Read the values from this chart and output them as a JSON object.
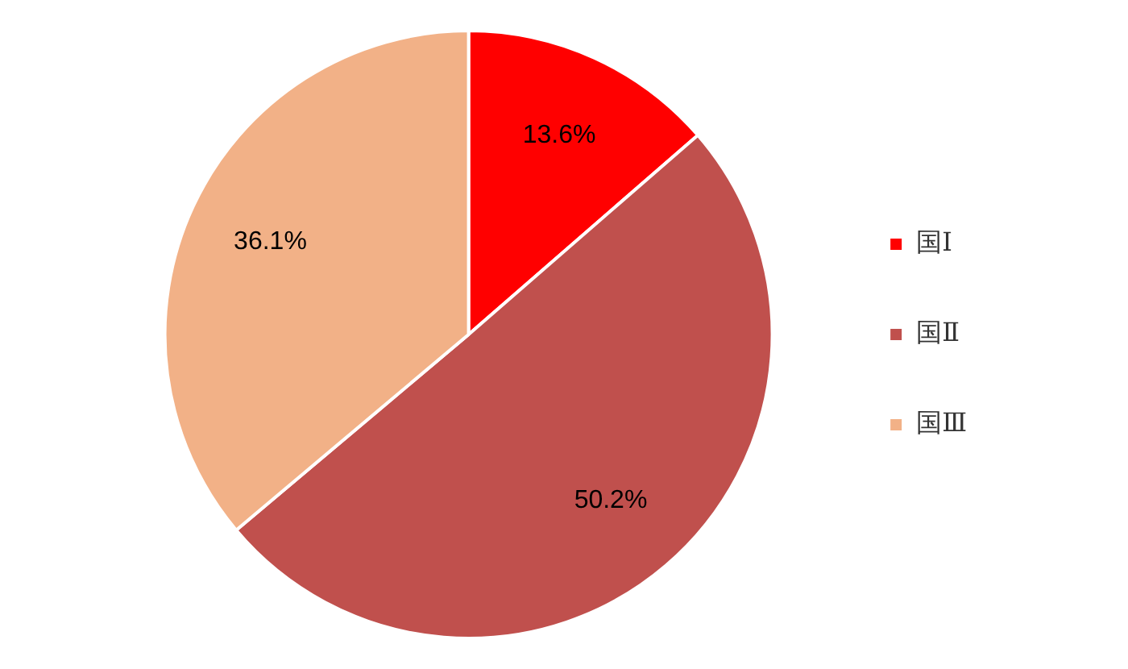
{
  "chart_data": {
    "type": "pie",
    "categories": [
      "国Ⅰ",
      "国Ⅱ",
      "国Ⅲ"
    ],
    "values": [
      13.6,
      50.2,
      36.1
    ],
    "value_labels": [
      "13.6%",
      "50.2%",
      "36.1%"
    ],
    "colors": [
      "#ff0000",
      "#c0504d",
      "#f2b187"
    ],
    "legend": "right"
  }
}
